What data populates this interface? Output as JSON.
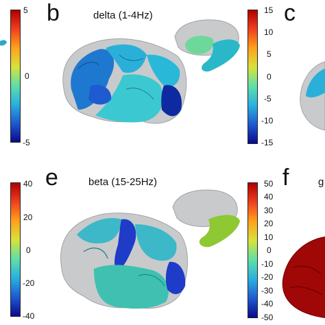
{
  "panels": {
    "a": {
      "ticks": [
        "5",
        "0",
        "-5"
      ]
    },
    "b": {
      "letter": "b",
      "title": "delta (1-4Hz)",
      "ticks": [
        "15",
        "10",
        "5",
        "0",
        "-5",
        "-10",
        "-15"
      ]
    },
    "c": {
      "letter": "c"
    },
    "d": {
      "ticks": [
        "40",
        "20",
        "0",
        "-20",
        "-40"
      ]
    },
    "e": {
      "letter": "e",
      "title": "beta (15-25Hz)",
      "ticks": [
        "50",
        "40",
        "30",
        "20",
        "10",
        "0",
        "-10",
        "-20",
        "-30",
        "-40",
        "-50"
      ]
    },
    "f": {
      "letter": "f",
      "title_fragment": "g"
    }
  },
  "colormap": [
    "#0a0a8c",
    "#1e3cc8",
    "#1f8fe0",
    "#2ad0d8",
    "#6fe0a0",
    "#d8e23a",
    "#ffa21a",
    "#f0401a",
    "#b00000"
  ]
}
